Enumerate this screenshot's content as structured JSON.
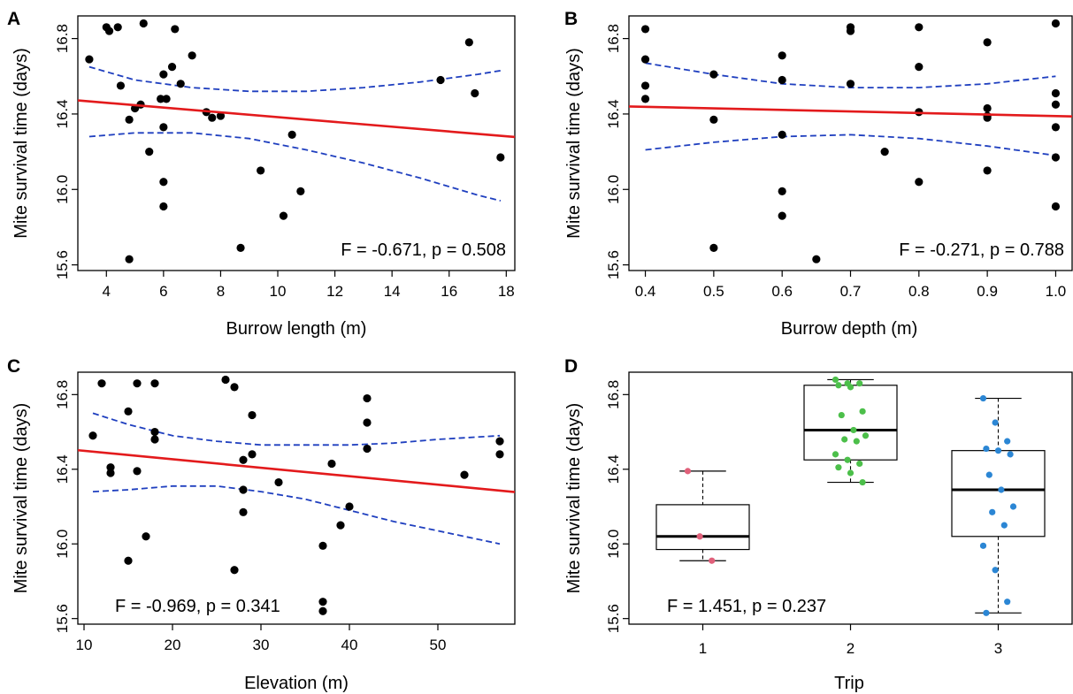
{
  "colors": {
    "fit_line": "#e31a1c",
    "ci_line": "#1f3fbf",
    "points": "#000000",
    "trip1": "#e0607a",
    "trip2": "#4cbf4a",
    "trip3": "#2b86d4"
  },
  "chart_data": [
    {
      "panel": "A",
      "type": "scatter",
      "xlabel": "Burrow length (m)",
      "ylabel": "Mite survival time (days)",
      "xlim": [
        3,
        18.3
      ],
      "ylim": [
        15.57,
        16.92
      ],
      "xticks": [
        4,
        6,
        8,
        10,
        12,
        14,
        16,
        18
      ],
      "xtick_labels": [
        "4",
        "6",
        "8",
        "10",
        "12",
        "14",
        "16",
        "18"
      ],
      "yticks": [
        15.6,
        16.0,
        16.4,
        16.8
      ],
      "ytick_labels": [
        "15.6",
        "16.0",
        "16.4",
        "16.8"
      ],
      "stat": "F = -0.671, p = 0.508",
      "grid": false,
      "points": [
        [
          3.4,
          16.69
        ],
        [
          4.0,
          16.86
        ],
        [
          4.1,
          16.84
        ],
        [
          4.4,
          16.86
        ],
        [
          4.5,
          16.55
        ],
        [
          4.8,
          16.37
        ],
        [
          4.8,
          15.63
        ],
        [
          5.0,
          16.43
        ],
        [
          5.2,
          16.45
        ],
        [
          5.3,
          16.88
        ],
        [
          5.5,
          16.2
        ],
        [
          5.9,
          16.48
        ],
        [
          6.0,
          16.61
        ],
        [
          6.0,
          16.33
        ],
        [
          6.0,
          16.04
        ],
        [
          6.0,
          15.91
        ],
        [
          6.1,
          16.48
        ],
        [
          6.3,
          16.65
        ],
        [
          6.4,
          16.85
        ],
        [
          6.6,
          16.56
        ],
        [
          7.0,
          16.71
        ],
        [
          7.5,
          16.41
        ],
        [
          7.7,
          16.38
        ],
        [
          8.0,
          16.39
        ],
        [
          8.7,
          15.69
        ],
        [
          9.4,
          16.1
        ],
        [
          10.2,
          15.86
        ],
        [
          10.5,
          16.29
        ],
        [
          10.8,
          15.99
        ],
        [
          15.7,
          16.58
        ],
        [
          16.7,
          16.78
        ],
        [
          16.9,
          16.51
        ],
        [
          17.8,
          16.17
        ]
      ],
      "fit": [
        [
          3.0,
          16.472
        ],
        [
          18.3,
          16.278
        ]
      ],
      "ci_upper": [
        [
          3.4,
          16.65
        ],
        [
          5.0,
          16.58
        ],
        [
          7.0,
          16.54
        ],
        [
          9.0,
          16.52
        ],
        [
          11.0,
          16.52
        ],
        [
          13.0,
          16.54
        ],
        [
          15.0,
          16.57
        ],
        [
          17.0,
          16.61
        ],
        [
          17.8,
          16.63
        ]
      ],
      "ci_lower": [
        [
          3.4,
          16.28
        ],
        [
          5.0,
          16.3
        ],
        [
          7.0,
          16.3
        ],
        [
          9.0,
          16.27
        ],
        [
          11.0,
          16.21
        ],
        [
          13.0,
          16.14
        ],
        [
          15.0,
          16.06
        ],
        [
          17.0,
          15.97
        ],
        [
          17.8,
          15.94
        ]
      ]
    },
    {
      "panel": "B",
      "type": "scatter",
      "xlabel": "Burrow depth (m)",
      "ylabel": "Mite survival time (days)",
      "xlim": [
        0.376,
        1.024
      ],
      "ylim": [
        15.57,
        16.92
      ],
      "xticks": [
        0.4,
        0.5,
        0.6,
        0.7,
        0.8,
        0.9,
        1.0
      ],
      "xtick_labels": [
        "0.4",
        "0.5",
        "0.6",
        "0.7",
        "0.8",
        "0.9",
        "1.0"
      ],
      "yticks": [
        15.6,
        16.0,
        16.4,
        16.8
      ],
      "ytick_labels": [
        "15.6",
        "16.0",
        "16.4",
        "16.8"
      ],
      "stat": "F = -0.271, p = 0.788",
      "grid": false,
      "points": [
        [
          0.4,
          16.85
        ],
        [
          0.4,
          16.69
        ],
        [
          0.4,
          16.55
        ],
        [
          0.4,
          16.48
        ],
        [
          0.5,
          16.61
        ],
        [
          0.5,
          16.37
        ],
        [
          0.5,
          15.69
        ],
        [
          0.6,
          16.71
        ],
        [
          0.6,
          16.58
        ],
        [
          0.6,
          16.29
        ],
        [
          0.6,
          15.99
        ],
        [
          0.6,
          15.86
        ],
        [
          0.65,
          15.63
        ],
        [
          0.7,
          16.86
        ],
        [
          0.7,
          16.84
        ],
        [
          0.7,
          16.56
        ],
        [
          0.75,
          16.2
        ],
        [
          0.8,
          16.86
        ],
        [
          0.8,
          16.65
        ],
        [
          0.8,
          16.41
        ],
        [
          0.8,
          16.04
        ],
        [
          0.9,
          16.78
        ],
        [
          0.9,
          16.43
        ],
        [
          0.9,
          16.39
        ],
        [
          0.9,
          16.38
        ],
        [
          0.9,
          16.1
        ],
        [
          1.0,
          16.88
        ],
        [
          1.0,
          16.51
        ],
        [
          1.0,
          16.45
        ],
        [
          1.0,
          16.33
        ],
        [
          1.0,
          16.17
        ],
        [
          1.0,
          15.91
        ]
      ],
      "fit": [
        [
          0.376,
          16.44
        ],
        [
          1.024,
          16.387
        ]
      ],
      "ci_upper": [
        [
          0.4,
          16.67
        ],
        [
          0.5,
          16.61
        ],
        [
          0.6,
          16.56
        ],
        [
          0.7,
          16.54
        ],
        [
          0.8,
          16.54
        ],
        [
          0.9,
          16.56
        ],
        [
          1.0,
          16.6
        ]
      ],
      "ci_lower": [
        [
          0.4,
          16.21
        ],
        [
          0.5,
          16.25
        ],
        [
          0.6,
          16.28
        ],
        [
          0.7,
          16.29
        ],
        [
          0.8,
          16.27
        ],
        [
          0.9,
          16.23
        ],
        [
          1.0,
          16.18
        ]
      ]
    },
    {
      "panel": "C",
      "type": "scatter",
      "xlabel": "Elevation (m)",
      "ylabel": "Mite survival time (days)",
      "xlim": [
        9.3,
        58.7
      ],
      "ylim": [
        15.57,
        16.92
      ],
      "xticks": [
        10,
        20,
        30,
        40,
        50
      ],
      "xtick_labels": [
        "10",
        "20",
        "30",
        "40",
        "50"
      ],
      "yticks": [
        15.6,
        16.0,
        16.4,
        16.8
      ],
      "ytick_labels": [
        "15.6",
        "16.0",
        "16.4",
        "16.8"
      ],
      "stat": "F = -0.969, p = 0.341",
      "grid": false,
      "points": [
        [
          11,
          16.58
        ],
        [
          12,
          16.86
        ],
        [
          13,
          16.41
        ],
        [
          13,
          16.38
        ],
        [
          15,
          16.71
        ],
        [
          15,
          15.91
        ],
        [
          16,
          16.86
        ],
        [
          16,
          16.39
        ],
        [
          17,
          16.04
        ],
        [
          18,
          16.86
        ],
        [
          18,
          16.6
        ],
        [
          18,
          16.56
        ],
        [
          26,
          16.88
        ],
        [
          27,
          16.84
        ],
        [
          27,
          15.86
        ],
        [
          28,
          16.45
        ],
        [
          28,
          16.29
        ],
        [
          28,
          16.17
        ],
        [
          29,
          16.69
        ],
        [
          29,
          16.48
        ],
        [
          32,
          16.33
        ],
        [
          37,
          15.99
        ],
        [
          37,
          15.69
        ],
        [
          37,
          15.64
        ],
        [
          38,
          16.43
        ],
        [
          39,
          16.1
        ],
        [
          40,
          16.2
        ],
        [
          42,
          16.78
        ],
        [
          42,
          16.65
        ],
        [
          42,
          16.51
        ],
        [
          53,
          16.37
        ],
        [
          57,
          16.55
        ],
        [
          57,
          16.48
        ]
      ],
      "fit": [
        [
          9.3,
          16.502
        ],
        [
          58.7,
          16.278
        ]
      ],
      "ci_upper": [
        [
          11,
          16.7
        ],
        [
          15,
          16.64
        ],
        [
          20,
          16.58
        ],
        [
          25,
          16.55
        ],
        [
          30,
          16.53
        ],
        [
          35,
          16.53
        ],
        [
          40,
          16.53
        ],
        [
          45,
          16.54
        ],
        [
          50,
          16.56
        ],
        [
          57,
          16.58
        ]
      ],
      "ci_lower": [
        [
          11,
          16.28
        ],
        [
          15,
          16.29
        ],
        [
          20,
          16.31
        ],
        [
          25,
          16.31
        ],
        [
          30,
          16.28
        ],
        [
          35,
          16.24
        ],
        [
          40,
          16.18
        ],
        [
          45,
          16.12
        ],
        [
          50,
          16.07
        ],
        [
          57,
          16.0
        ]
      ]
    },
    {
      "panel": "D",
      "type": "box",
      "xlabel": "Trip",
      "ylabel": "Mite survival time (days)",
      "ylim": [
        15.57,
        16.92
      ],
      "categories": [
        "1",
        "2",
        "3"
      ],
      "yticks": [
        15.6,
        16.0,
        16.4,
        16.8
      ],
      "ytick_labels": [
        "15.6",
        "16.0",
        "16.4",
        "16.8"
      ],
      "stat": "F = 1.451, p = 0.237",
      "grid": false,
      "boxes": [
        {
          "category": "1",
          "whisker_low": 15.91,
          "q1": 15.97,
          "median": 16.04,
          "q3": 16.21,
          "whisker_high": 16.39,
          "color_key": "trip1",
          "points": [
            16.39,
            16.04,
            15.91
          ]
        },
        {
          "category": "2",
          "whisker_low": 16.33,
          "q1": 16.45,
          "median": 16.61,
          "q3": 16.85,
          "whisker_high": 16.88,
          "color_key": "trip2",
          "points": [
            16.88,
            16.86,
            16.86,
            16.85,
            16.84,
            16.71,
            16.69,
            16.61,
            16.58,
            16.56,
            16.55,
            16.48,
            16.45,
            16.43,
            16.41,
            16.38,
            16.33
          ]
        },
        {
          "category": "3",
          "whisker_low": 15.63,
          "q1": 16.04,
          "median": 16.29,
          "q3": 16.5,
          "whisker_high": 16.78,
          "color_key": "trip3",
          "points": [
            16.78,
            16.65,
            16.55,
            16.51,
            16.5,
            16.48,
            16.37,
            16.29,
            16.2,
            16.17,
            16.1,
            15.99,
            15.86,
            15.69,
            15.63
          ]
        }
      ]
    }
  ]
}
